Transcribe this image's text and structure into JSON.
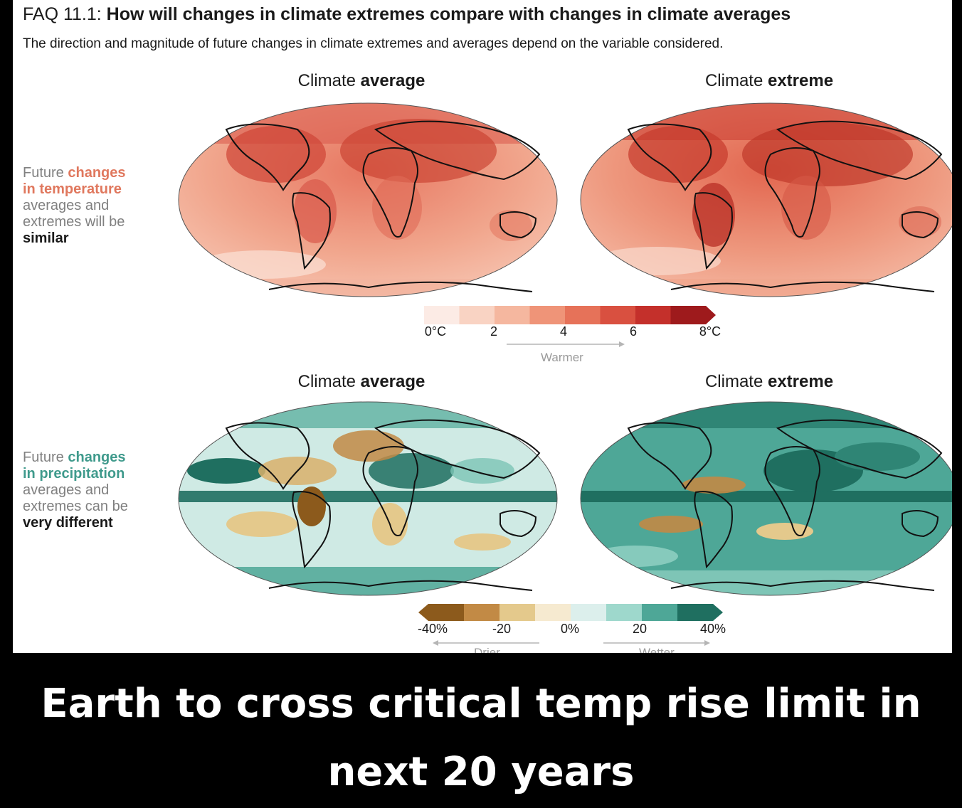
{
  "faq": {
    "label": "FAQ 11.1:",
    "question": "How will changes in climate extremes compare with changes in climate averages",
    "subtitle": "The direction and magnitude of future changes in climate extremes and averages depend on the variable considered."
  },
  "columns": {
    "average_plain": "Climate",
    "average_bold": "average",
    "extreme_plain": "Climate",
    "extreme_bold": "extreme"
  },
  "temperature": {
    "side_l1": "Future",
    "side_accent1": "changes",
    "side_accent2": "in temperature",
    "side_l3": "averages and",
    "side_l4": "extremes will be",
    "side_bold": "similar",
    "accent_color": "#e0785e",
    "colorbar": {
      "colors": [
        "#fcebe5",
        "#f9d3c3",
        "#f5b79f",
        "#ef9478",
        "#e67259",
        "#d95040",
        "#c4302b",
        "#9e1a1c"
      ],
      "ticks": [
        "0°C",
        "2",
        "4",
        "6",
        "8°C"
      ],
      "direction": "Warmer"
    }
  },
  "precipitation": {
    "side_l1": "Future",
    "side_accent1": "changes",
    "side_accent2": "in precipitation",
    "side_l3": "averages and",
    "side_l4": "extremes can be",
    "side_bold": "very different",
    "accent_color": "#3f9a8c",
    "colorbar": {
      "colors": [
        "#8c5a1c",
        "#c28a45",
        "#e4c98c",
        "#f6ead0",
        "#dcefec",
        "#9ed8cc",
        "#4ea797",
        "#1f6f60"
      ],
      "ticks": [
        "-40%",
        "-20",
        "0%",
        "20",
        "40%"
      ],
      "direction_left": "Drier",
      "direction_right": "Wetter"
    }
  },
  "headline": {
    "line1": "Earth to cross critical temp rise limit in",
    "line2": "next 20 years"
  }
}
